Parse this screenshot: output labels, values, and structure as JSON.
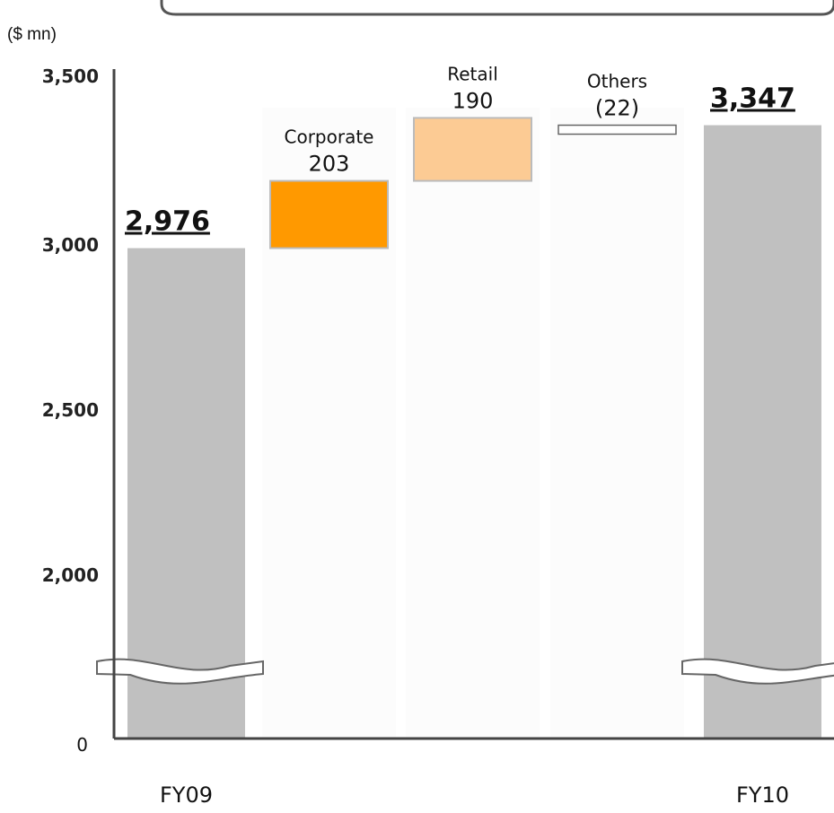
{
  "chart_data": {
    "type": "bar",
    "subtype": "waterfall",
    "unit_label": "($ mn)",
    "y_ticks": [
      "3,500",
      "3,000",
      "2,500",
      "2,000",
      "0"
    ],
    "y_tick_values": [
      3500,
      3000,
      2500,
      2000,
      0
    ],
    "axis_break": true,
    "ylim": [
      0,
      3500
    ],
    "categories": [
      "FY09",
      "Corporate",
      "Retail",
      "Others",
      "FY10"
    ],
    "bars": [
      {
        "name": "FY09",
        "kind": "total",
        "value": 2976,
        "value_label": "2,976",
        "axis_label": "FY09",
        "color": "#c0c0c0"
      },
      {
        "name": "Corporate",
        "kind": "delta",
        "start": 2976,
        "value": 203,
        "value_label": "203",
        "segment_label": "Corporate",
        "color": "#ff9900"
      },
      {
        "name": "Retail",
        "kind": "delta",
        "start": 3179,
        "value": 190,
        "value_label": "190",
        "segment_label": "Retail",
        "color": "#fccb94"
      },
      {
        "name": "Others",
        "kind": "delta",
        "start": 3347,
        "value": -22,
        "value_label": "(22)",
        "segment_label": "Others",
        "color": "#ffffff"
      },
      {
        "name": "FY10",
        "kind": "total",
        "value": 3347,
        "value_label": "3,347",
        "axis_label": "FY10",
        "color": "#c0c0c0"
      }
    ],
    "grid": false,
    "legend": "none"
  }
}
